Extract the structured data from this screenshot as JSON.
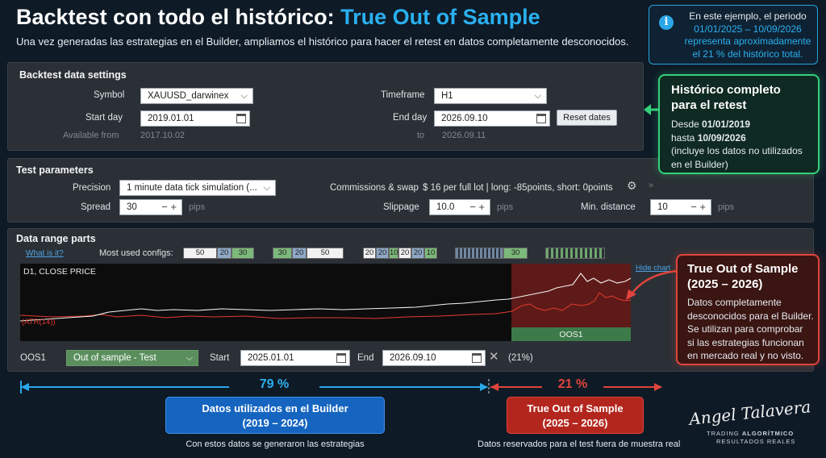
{
  "header": {
    "title_main": "Backtest con todo el histórico:",
    "title_highlight": "True Out of Sample",
    "subtitle": "Una vez generadas las estrategias en el Builder, ampliamos el histórico para hacer el retest en datos completamente desconocidos."
  },
  "info_box": {
    "line1": "En este ejemplo, el periodo",
    "line2": "01/01/2025 – 10/09/2026",
    "line3": "representa aproximadamente",
    "line4": "el 21 % del histórico total."
  },
  "backtest_settings": {
    "title": "Backtest data settings",
    "symbol_label": "Symbol",
    "symbol_value": "XAUUSD_darwinex",
    "start_label": "Start day",
    "start_value": "2019.01.01",
    "available_label": "Available from",
    "available_value": "2017.10.02",
    "timeframe_label": "Timeframe",
    "timeframe_value": "H1",
    "end_label": "End day",
    "end_value": "2026.09.10",
    "to_label": "to",
    "to_value": "2026.09.11",
    "reset_label": "Reset dates"
  },
  "test_params": {
    "title": "Test parameters",
    "precision_label": "Precision",
    "precision_value": "1 minute data tick simulation (...",
    "commissions_label": "Commissions & swap",
    "commissions_value": "$ 16 per full lot | long: -85points, short: 0points",
    "spread_label": "Spread",
    "spread_value": "30",
    "pips1": "pips",
    "slippage_label": "Slippage",
    "slippage_value": "10.0",
    "pips2": "pips",
    "mindist_label": "Min. distance",
    "mindist_value": "10",
    "pips3": "pips"
  },
  "data_range": {
    "title": "Data range parts",
    "what_link": "What is it?",
    "most_used": "Most used configs:",
    "cfg1": [
      "50",
      "20",
      "30"
    ],
    "cfg2": [
      "30",
      "20",
      "50"
    ],
    "cfg3": [
      "20",
      "20",
      "10",
      "20",
      "20",
      "10"
    ],
    "cfg4": "30",
    "hide_chart": "Hide chart",
    "chart_label": "D1, CLOSE PRICE",
    "atr_label": "(ATR(14))",
    "oos_band": "OOS1",
    "oos_label": "OOS1",
    "oos_type": "Out of sample - Test",
    "start_label": "Start",
    "start_value": "2025.01.01",
    "end_label": "End",
    "end_value": "2026.09.10",
    "percent": "(21%)"
  },
  "green_callout": {
    "head1": "Histórico completo",
    "head2": "para el retest",
    "l1_pre": "Desde ",
    "l1_val": "01/01/2019",
    "l2_pre": "hasta ",
    "l2_val": "10/09/2026",
    "l3": "(incluye los datos no utilizados",
    "l4": "en el Builder)"
  },
  "red_callout": {
    "head1": "True Out of Sample",
    "head2": "(2025 – 2026)",
    "l1": "Datos completamente",
    "l2": "desconocidos para el Builder.",
    "l3": "Se utilizan para comprobar",
    "l4": "si las estrategias funcionan",
    "l5": "en mercado real y no visto."
  },
  "bottom": {
    "pct_blue": "79 %",
    "pct_red": "21 %",
    "blue_title": "Datos utilizados en el Builder",
    "blue_years": "(2019 – 2024)",
    "blue_caption": "Con estos datos se generaron las estrategias",
    "red_title": "True Out of Sample",
    "red_years": "(2025 – 2026)",
    "red_caption": "Datos reservados para el test fuera de muestra real"
  },
  "logo": {
    "signature": "Angel Talavera",
    "tag1_a": "TRADING ",
    "tag1_b": "ALGORÍTMICO",
    "tag2": "RESULTADOS REALES"
  },
  "colors": {
    "accent_blue": "#2ab0ef",
    "green": "#35d17a",
    "red": "#e0453c",
    "panel": "#2b3036"
  }
}
